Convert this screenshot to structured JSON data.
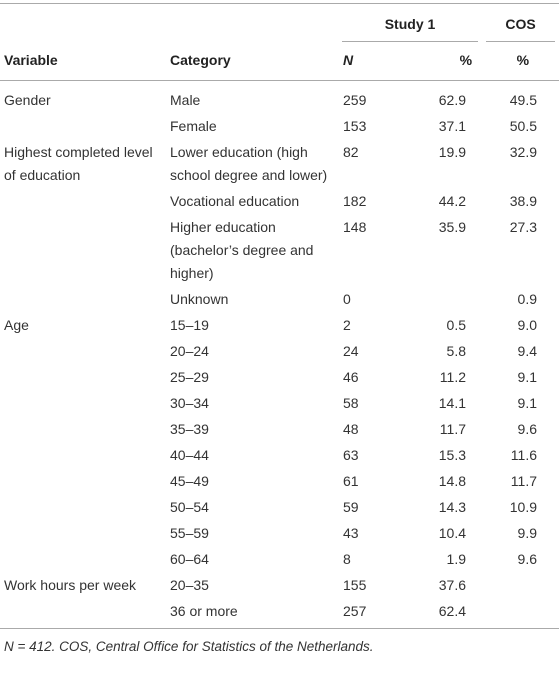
{
  "table": {
    "header": {
      "study": "Study 1",
      "cos": "COS",
      "columns": [
        "Variable",
        "Category",
        "N",
        "%",
        "%"
      ]
    },
    "groups": [
      {
        "variable": "Gender",
        "rows": [
          [
            "Male",
            "259",
            "62.9",
            "49.5"
          ],
          [
            "Female",
            "153",
            "37.1",
            "50.5"
          ]
        ]
      },
      {
        "variable": "Highest completed level of education",
        "rows": [
          [
            "Lower education (high school degree and lower)",
            "82",
            "19.9",
            "32.9"
          ],
          [
            "Vocational education",
            "182",
            "44.2",
            "38.9"
          ],
          [
            "Higher education (bachelor’s degree and higher)",
            "148",
            "35.9",
            "27.3"
          ],
          [
            "Unknown",
            "0",
            null,
            "0.9"
          ]
        ]
      },
      {
        "variable": "Age",
        "rows": [
          [
            "15–19",
            "2",
            "0.5",
            "9.0"
          ],
          [
            "20–24",
            "24",
            "5.8",
            "9.4"
          ],
          [
            "25–29",
            "46",
            "11.2",
            "9.1"
          ],
          [
            "30–34",
            "58",
            "14.1",
            "9.1"
          ],
          [
            "35–39",
            "48",
            "11.7",
            "9.6"
          ],
          [
            "40–44",
            "63",
            "15.3",
            "11.6"
          ],
          [
            "45–49",
            "61",
            "14.8",
            "11.7"
          ],
          [
            "50–54",
            "59",
            "14.3",
            "10.9"
          ],
          [
            "55–59",
            "43",
            "10.4",
            "9.9"
          ],
          [
            "60–64",
            "8",
            "1.9",
            "9.6"
          ]
        ]
      },
      {
        "variable": "Work hours per week",
        "rows": [
          [
            "20–35",
            "155",
            "37.6",
            null
          ],
          [
            "36 or more",
            "257",
            "62.4",
            null
          ]
        ]
      }
    ],
    "note": "N = 412. COS, Central Office for Statistics of the Netherlands."
  }
}
